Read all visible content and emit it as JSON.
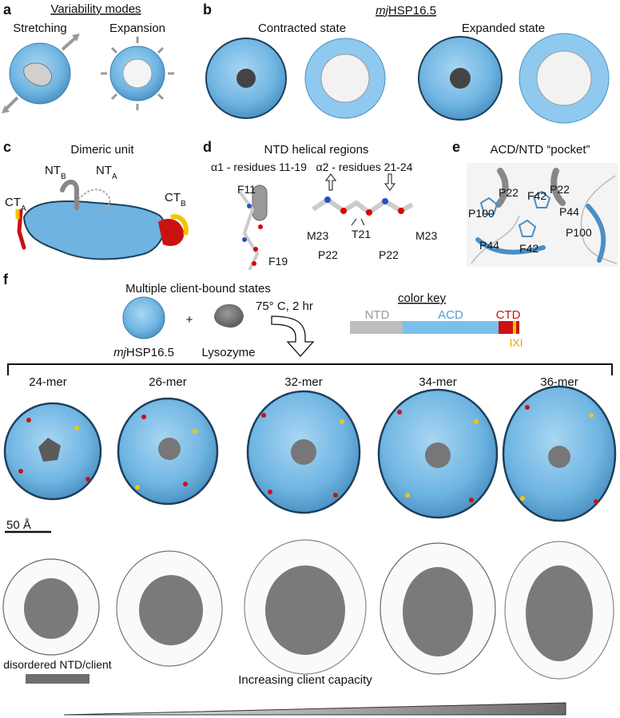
{
  "panels": {
    "a": {
      "letter": "a",
      "title": "Variability modes",
      "modes": [
        "Stretching",
        "Expansion"
      ]
    },
    "b": {
      "letter": "b",
      "protein_prefix": "mj",
      "protein_suffix": "HSP16.5",
      "states": [
        "Contracted state",
        "Expanded state"
      ]
    },
    "c": {
      "letter": "c",
      "title": "Dimeric unit",
      "labels": [
        {
          "base": "NT",
          "sub": "B"
        },
        {
          "base": "NT",
          "sub": "A"
        },
        {
          "base": "CT",
          "sub": "A"
        },
        {
          "base": "CT",
          "sub": "B"
        }
      ]
    },
    "d": {
      "letter": "d",
      "title": "NTD helical regions",
      "helix1": "α1 - residues 11-19",
      "helix2": "α2 - residues 21-24",
      "residues": [
        "F11",
        "F19",
        "M23",
        "T21",
        "P22",
        "P22",
        "M23"
      ]
    },
    "e": {
      "letter": "e",
      "title": "ACD/NTD “pocket”",
      "residues": [
        "P22",
        "F42",
        "P22",
        "P100",
        "P44",
        "P100",
        "P44",
        "F42"
      ]
    },
    "f": {
      "letter": "f",
      "title": "Multiple client-bound states",
      "reactant1_prefix": "mj",
      "reactant1_suffix": "HSP16.5",
      "plus": "+",
      "reactant2": "Lysozyme",
      "condition": "75° C, 2 hr",
      "color_key": {
        "title": "color key",
        "segments": [
          "NTD",
          "ACD",
          "CTD"
        ],
        "motif": "IXI",
        "colors": {
          "ntd": "#bdbdbd",
          "acd": "#7cc0ea",
          "ctd": "#cc1111",
          "ixi": "#f5c400"
        }
      },
      "oligomers": [
        "24-mer",
        "26-mer",
        "32-mer",
        "34-mer",
        "36-mer"
      ],
      "scale_bar": "50 Å",
      "density_label": "disordered NTD/client",
      "trend_label": "Increasing client capacity"
    }
  },
  "colors": {
    "shell": "#7cc0ea",
    "shell_dark": "#1d3f5c",
    "ctd": "#cc1111",
    "ixi": "#f5c400",
    "interior": "#8a8a8a",
    "gray_dark": "#6f6f6f"
  }
}
